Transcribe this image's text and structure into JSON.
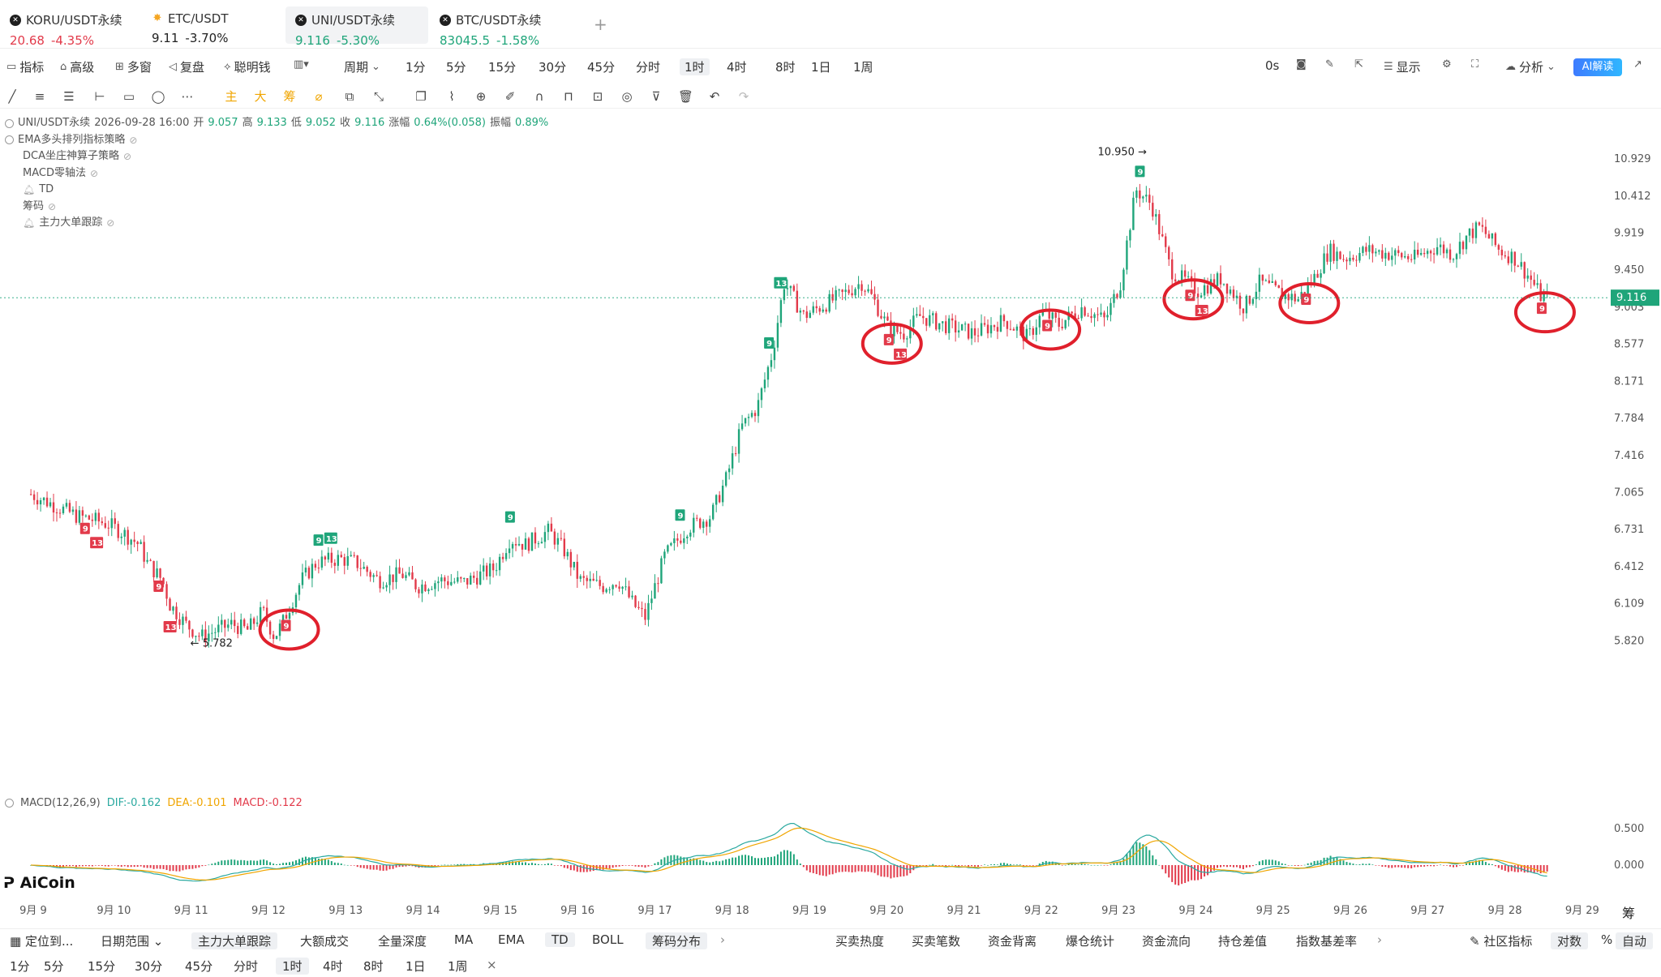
{
  "tabs": [
    {
      "name": "KORU/USDT永续",
      "price": "20.68",
      "change": "-4.35%",
      "price_color": "red",
      "icon": "x-circle-icon"
    },
    {
      "name": "ETC/USDT",
      "price": "9.11",
      "change": "-3.70%",
      "price_color": "dark",
      "icon": "sun-icon"
    },
    {
      "name": "UNI/USDT永续",
      "price": "9.116",
      "change": "-5.30%",
      "price_color": "green",
      "icon": "x-circle-icon",
      "active": true
    },
    {
      "name": "BTC/USDT永续",
      "price": "83045.5",
      "change": "-1.58%",
      "price_color": "green",
      "icon": "x-circle-icon"
    }
  ],
  "toolbar": {
    "indicator": "指标",
    "advanced": "高级",
    "multi_window": "多窗",
    "replay": "复盘",
    "smart_money": "聪明钱",
    "period": "周期",
    "periods": [
      "1分",
      "5分",
      "15分",
      "30分",
      "45分",
      "分时",
      "1时",
      "4时",
      "8时",
      "1日",
      "1周"
    ],
    "selected_period": "1时",
    "countdown": "0s",
    "display": "显示",
    "analysis": "分析",
    "ai_label": "AI解读"
  },
  "info": {
    "symbol": "UNI/USDT永续",
    "datetime": "2026-09-28 16:00",
    "open_label": "开",
    "open": "9.057",
    "high_label": "高",
    "high": "9.133",
    "low_label": "低",
    "low": "9.052",
    "close_label": "收",
    "close": "9.116",
    "change_label": "涨幅",
    "change": "0.64%(0.058)",
    "amp_label": "振幅",
    "amp": "0.89%",
    "strategies": [
      "EMA多头排列指标策略",
      "DCA坐庄神算子策略",
      "MACD零轴法",
      "TD",
      "筹码",
      "主力大单跟踪"
    ]
  },
  "macd": {
    "name": "MACD(12,26,9)",
    "dif": "DIF:-0.162",
    "dea": "DEA:-0.101",
    "macd": "MACD:-0.122"
  },
  "logo": "AiCoin",
  "side_label": "筹",
  "colors": {
    "up": "#1fa57a",
    "down": "#e23a4a",
    "dif": "#2aa9a0",
    "dea": "#f0a500",
    "highlight_ring": "#e0202c"
  },
  "chart_data": {
    "type": "candlestick",
    "y_ticks": [
      "10.929",
      "10.412",
      "9.919",
      "9.450",
      "9.003",
      "8.577",
      "8.171",
      "7.784",
      "7.416",
      "7.065",
      "6.731",
      "6.412",
      "6.109",
      "5.820"
    ],
    "x_ticks": [
      "9月 9",
      "9月 10",
      "9月 11",
      "9月 12",
      "9月 13",
      "9月 14",
      "9月 15",
      "9月 16",
      "9月 17",
      "9月 18",
      "9月 19",
      "9月 20",
      "9月 21",
      "9月 22",
      "9月 23",
      "9月 24",
      "9月 25",
      "9月 26",
      "9月 27",
      "9月 28",
      "9月 29"
    ],
    "current_price": "9.116",
    "high_marker": "10.950",
    "low_marker": "5.782",
    "macd_ticks": [
      "0.500",
      "0.000"
    ],
    "path": [
      [
        9.0,
        7.05
      ],
      [
        9.3,
        6.95
      ],
      [
        9.6,
        6.85
      ],
      [
        9.8,
        6.82
      ],
      [
        10.0,
        6.78
      ],
      [
        10.2,
        6.7
      ],
      [
        10.4,
        6.6
      ],
      [
        10.5,
        6.45
      ],
      [
        10.7,
        6.3
      ],
      [
        10.8,
        6.1
      ],
      [
        11.0,
        5.95
      ],
      [
        11.2,
        5.85
      ],
      [
        11.4,
        5.9
      ],
      [
        11.6,
        5.95
      ],
      [
        11.8,
        5.9
      ],
      [
        12.0,
        6.05
      ],
      [
        12.15,
        5.85
      ],
      [
        12.25,
        5.95
      ],
      [
        12.5,
        6.3
      ],
      [
        12.7,
        6.45
      ],
      [
        13.0,
        6.48
      ],
      [
        13.2,
        6.45
      ],
      [
        13.5,
        6.3
      ],
      [
        13.8,
        6.35
      ],
      [
        14.0,
        6.25
      ],
      [
        14.3,
        6.3
      ],
      [
        14.6,
        6.28
      ],
      [
        15.0,
        6.4
      ],
      [
        15.2,
        6.65
      ],
      [
        15.4,
        6.6
      ],
      [
        15.7,
        6.72
      ],
      [
        15.9,
        6.55
      ],
      [
        16.1,
        6.3
      ],
      [
        16.4,
        6.25
      ],
      [
        16.6,
        6.3
      ],
      [
        16.8,
        6.1
      ],
      [
        16.95,
        6.0
      ],
      [
        17.2,
        6.5
      ],
      [
        17.5,
        6.75
      ],
      [
        17.8,
        6.85
      ],
      [
        18.0,
        7.2
      ],
      [
        18.2,
        7.7
      ],
      [
        18.4,
        7.9
      ],
      [
        18.6,
        8.5
      ],
      [
        18.75,
        9.3
      ],
      [
        19.0,
        8.9
      ],
      [
        19.3,
        9.05
      ],
      [
        19.5,
        9.15
      ],
      [
        19.75,
        9.3
      ],
      [
        19.9,
        9.1
      ],
      [
        20.1,
        8.75
      ],
      [
        20.3,
        8.7
      ],
      [
        20.5,
        8.9
      ],
      [
        20.8,
        8.8
      ],
      [
        21.2,
        8.7
      ],
      [
        21.6,
        8.85
      ],
      [
        21.9,
        8.65
      ],
      [
        22.1,
        8.95
      ],
      [
        22.3,
        8.8
      ],
      [
        22.6,
        9.0
      ],
      [
        22.9,
        8.85
      ],
      [
        23.1,
        9.3
      ],
      [
        23.3,
        10.5
      ],
      [
        23.5,
        10.3
      ],
      [
        23.75,
        9.45
      ],
      [
        24.1,
        9.2
      ],
      [
        24.4,
        9.35
      ],
      [
        24.7,
        9.0
      ],
      [
        24.9,
        9.3
      ],
      [
        25.2,
        9.15
      ],
      [
        25.4,
        9.1
      ],
      [
        25.6,
        9.35
      ],
      [
        25.8,
        9.7
      ],
      [
        26.0,
        9.6
      ],
      [
        26.3,
        9.7
      ],
      [
        26.6,
        9.65
      ],
      [
        26.9,
        9.6
      ],
      [
        27.2,
        9.75
      ],
      [
        27.4,
        9.65
      ],
      [
        27.6,
        9.9
      ],
      [
        27.75,
        10.0
      ],
      [
        28.0,
        9.7
      ],
      [
        28.2,
        9.6
      ],
      [
        28.4,
        9.35
      ],
      [
        28.55,
        9.116
      ],
      [
        28.62,
        9.116
      ]
    ],
    "td_labels": [
      {
        "t": 9.7,
        "text": "9",
        "color": "down"
      },
      {
        "t": 9.85,
        "text": "13",
        "color": "down"
      },
      {
        "t": 10.65,
        "text": "9",
        "color": "down"
      },
      {
        "t": 10.8,
        "text": "13",
        "color": "down"
      },
      {
        "t": 12.3,
        "text": "9",
        "color": "down",
        "ring": true
      },
      {
        "t": 12.72,
        "text": "9",
        "color": "up"
      },
      {
        "t": 12.88,
        "text": "13",
        "color": "up"
      },
      {
        "t": 15.2,
        "text": "9",
        "color": "up"
      },
      {
        "t": 17.4,
        "text": "9",
        "color": "up"
      },
      {
        "t": 18.55,
        "text": "9",
        "color": "up"
      },
      {
        "t": 18.7,
        "text": "13",
        "color": "up"
      },
      {
        "t": 20.1,
        "text": "9",
        "color": "down",
        "ring": true
      },
      {
        "t": 20.25,
        "text": "13",
        "color": "down"
      },
      {
        "t": 22.15,
        "text": "9",
        "color": "down",
        "ring": true
      },
      {
        "t": 23.35,
        "text": "9",
        "color": "up"
      },
      {
        "t": 24.0,
        "text": "9",
        "color": "down",
        "ring": true
      },
      {
        "t": 24.15,
        "text": "13",
        "color": "down"
      },
      {
        "t": 25.5,
        "text": "9",
        "color": "down",
        "ring": true
      },
      {
        "t": 28.55,
        "text": "9",
        "color": "down",
        "ring": true
      }
    ]
  },
  "bottom_bar": {
    "left": [
      "定位到...",
      "日期范围"
    ],
    "indicators": [
      "主力大单跟踪",
      "大额成交",
      "全量深度",
      "MA",
      "EMA",
      "TD",
      "BOLL",
      "筹码分布"
    ],
    "right": [
      "买卖热度",
      "买卖笔数",
      "资金背离",
      "爆仓统计",
      "资金流向",
      "持仓差值",
      "指数基差率"
    ],
    "community": "社区指标",
    "log_label": "对数",
    "percent_label": "%",
    "auto_label": "自动"
  },
  "bottom_periods": [
    "1分",
    "5分",
    "15分",
    "30分",
    "45分",
    "分时",
    "1时",
    "4时",
    "8时",
    "1日",
    "1周"
  ],
  "bottom_selected": "1时"
}
